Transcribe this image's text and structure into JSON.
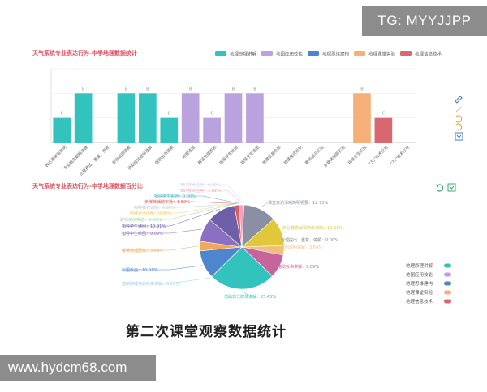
{
  "watermark_tg": "TG: MYYJJPP",
  "watermark_url": "www.hydcm68.com",
  "caption": "第二次课堂观察数据统计",
  "colors": {
    "teal": "#33c3bf",
    "purple": "#b9a2de",
    "blue": "#4d86cf",
    "orange": "#f5b07a",
    "red": "#d9676f",
    "title_red": "#e0505f",
    "icon_blue": "#4a7fc1",
    "icon_green": "#3aa86b"
  },
  "icons": [
    "pencil-icon",
    "eraser-icon",
    "refresh-icon",
    "save-icon",
    "refresh-icon-2",
    "save-icon-2"
  ],
  "chart_data": [
    {
      "type": "bar",
      "title": "天气系统专业表达行为-中学地理数据统计",
      "legend": [
        "地理原理讲解",
        "地图应用技能",
        "地理思维建构",
        "地理课堂实验",
        "地理信息技术"
      ],
      "legend_position": "top-right",
      "categories": [
        "表达清晰简单明",
        "专业概念解释准确",
        "合理提出、重复、停顿",
        "举例说明讲解",
        "借助现代媒体讲解",
        "借助板书讲解",
        "地理读图",
        "解读地理图表",
        "指导学生绘图",
        "指导学生读图",
        "地理信息检索",
        "地理模式识别",
        "教师演示实验",
        "多媒体辅助实验",
        "指导学生实验",
        "\"3S\"技术应用",
        "\"3S\"技术应用"
      ],
      "series_of_category": [
        0,
        0,
        0,
        0,
        0,
        0,
        1,
        1,
        1,
        1,
        2,
        2,
        3,
        3,
        3,
        4,
        4
      ],
      "values": [
        "C",
        "B",
        "",
        "B",
        "B",
        "C",
        "B",
        "C",
        "B",
        "B",
        "",
        "",
        "",
        "",
        "B",
        "C",
        ""
      ],
      "grade_scale": {
        "A": 3,
        "B": 2,
        "C": 1
      },
      "yaxis": "grade",
      "grid": true
    },
    {
      "type": "pie",
      "title": "天气系统专业表达行为-中学地理数据百分比",
      "legend": [
        "地理原理讲解",
        "地图应用技能",
        "地理思维建构",
        "地理课堂实验",
        "地理信息技术"
      ],
      "legend_position": "bottom-right",
      "slices": [
        {
          "label": "课堂表达清晰简明扼要",
          "value": 12.73
        },
        {
          "label": "专业概念解释简练准确",
          "value": 10.91
        },
        {
          "label": "合理提出、重复、停顿",
          "value": 0.0
        },
        {
          "label": "举例说明讲解",
          "value": 3.64
        },
        {
          "label": "借助板书讲解",
          "value": 9.09
        },
        {
          "label": "借助现代媒体讲解",
          "value": 25.45
        },
        {
          "label": "借助地理信息检索讲解",
          "value": 0.0
        },
        {
          "label": "标图板画",
          "value": 10.91
        },
        {
          "label": "解读地理图像",
          "value": 3.64
        },
        {
          "label": "指导学生绘图",
          "value": 9.09
        },
        {
          "label": "指导学生读图",
          "value": 10.91
        },
        {
          "label": "教师演示实验",
          "value": 0.0
        },
        {
          "label": "思维方法创新",
          "value": 0.0
        },
        {
          "label": "指导模式识别",
          "value": 0.0
        },
        {
          "label": "多媒体辅助实验",
          "value": 1.82
        },
        {
          "label": "指导学生实验",
          "value": 0.0
        },
        {
          "label": "\"3S\"技术应用",
          "value": 1.82
        },
        {
          "label": "\"3S\"技术应用",
          "value": 0.0
        }
      ],
      "label_texts": [
        "课堂表达清晰简明扼要：12.73%",
        "专业概念解释简练准确：10.91%",
        "合理提出、重复、停顿：0.00%",
        "举例说明讲解：3.64%",
        "借助板书讲解：9.09%",
        "借助现代媒体讲解：25.45%",
        "借助地理信息检索讲解：0.00%",
        "标图板画：10.91%",
        "解读地理图像：3.64%",
        "指导学生绘图：9.09%",
        "指导学生读图：10.91%",
        "教师演示实验：0.00%",
        "思维方法创新：0.00%",
        "指导模式识别：0.00%",
        "多媒体辅助实验：1.82%",
        "指导学生实验：0.00%",
        "\"3S\"技术应用：1.82%",
        "\"3S\"技术应用：0.00%"
      ]
    }
  ]
}
